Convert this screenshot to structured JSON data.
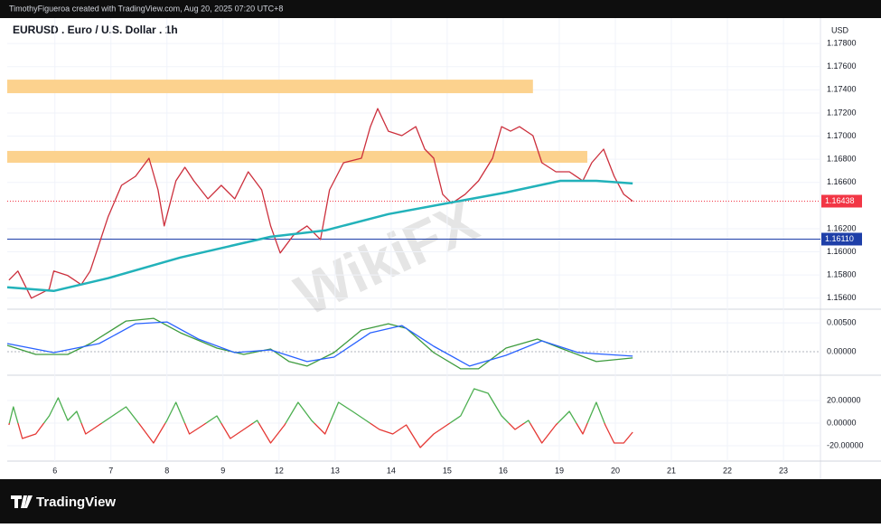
{
  "header": {
    "text": "TimothyFigueroa created with TradingView.com, Aug 20, 2025 07:20 UTC+8"
  },
  "footer": {
    "brand": "TradingView"
  },
  "watermark": "WikiFX",
  "chart_data": [
    {
      "type": "line",
      "title": "EURUSD . Euro / U.S. Dollar . 1h",
      "currency": "USD",
      "xlim": [
        0.15,
        14.66
      ],
      "xticks": [
        {
          "value": 1,
          "label": "6"
        },
        {
          "value": 2,
          "label": "7"
        },
        {
          "value": 3,
          "label": "8"
        },
        {
          "value": 4,
          "label": "9"
        },
        {
          "value": 5,
          "label": "12"
        },
        {
          "value": 6,
          "label": "13"
        },
        {
          "value": 7,
          "label": "14"
        },
        {
          "value": 8,
          "label": "15"
        },
        {
          "value": 9,
          "label": "16"
        },
        {
          "value": 10,
          "label": "19"
        },
        {
          "value": 11,
          "label": "20"
        },
        {
          "value": 12,
          "label": "21"
        },
        {
          "value": 13,
          "label": "22"
        },
        {
          "value": 14,
          "label": "23"
        }
      ],
      "ylim": [
        1.1552,
        1.1802
      ],
      "yticks": [
        {
          "value": 1.156,
          "label": "1.15600"
        },
        {
          "value": 1.158,
          "label": "1.15800"
        },
        {
          "value": 1.16,
          "label": "1.16000"
        },
        {
          "value": 1.162,
          "label": "1.16200"
        },
        {
          "value": 1.166,
          "label": "1.16600"
        },
        {
          "value": 1.168,
          "label": "1.16800"
        },
        {
          "value": 1.17,
          "label": "1.17000"
        },
        {
          "value": 1.172,
          "label": "1.17200"
        },
        {
          "value": 1.174,
          "label": "1.17400"
        },
        {
          "value": 1.176,
          "label": "1.17600"
        },
        {
          "value": 1.178,
          "label": "1.17800"
        }
      ],
      "grid": true,
      "zones": [
        {
          "from": 1.17371,
          "to": 1.17488,
          "x_end": 9.53,
          "color": "#fcd28e"
        },
        {
          "from": 1.1677,
          "to": 1.16872,
          "x_end": 10.5,
          "color": "#fcd28e"
        }
      ],
      "price_lines": [
        {
          "value": 1.16438,
          "color": "#f23645"
        },
        {
          "value": 1.1611,
          "label": "1.16110",
          "color": "#1e3fa8"
        }
      ],
      "series": [
        {
          "color": "#cc2f3c",
          "x": [
            0.18,
            0.34,
            0.58,
            0.9,
            0.98,
            1.23,
            1.47,
            1.63,
            1.79,
            1.95,
            2.19,
            2.44,
            2.68,
            2.84,
            2.95,
            3.16,
            3.32,
            3.48,
            3.73,
            3.97,
            4.21,
            4.45,
            4.69,
            4.85,
            5.02,
            5.26,
            5.5,
            5.74,
            5.9,
            6.15,
            6.47,
            6.63,
            6.76,
            6.95,
            7.19,
            7.44,
            7.6,
            7.76,
            7.92,
            8.08,
            8.32,
            8.56,
            8.81,
            8.97,
            9.13,
            9.29,
            9.53,
            9.69,
            9.94,
            10.18,
            10.42,
            10.58,
            10.79,
            10.98,
            11.15,
            11.31
          ],
          "values": [
            1.15756,
            1.15834,
            1.156,
            1.15678,
            1.15834,
            1.15795,
            1.15717,
            1.15834,
            1.16068,
            1.16302,
            1.16575,
            1.16653,
            1.16809,
            1.16536,
            1.16224,
            1.16614,
            1.16731,
            1.16614,
            1.16458,
            1.16575,
            1.16458,
            1.16692,
            1.16536,
            1.16224,
            1.1599,
            1.16146,
            1.16224,
            1.16107,
            1.16536,
            1.1677,
            1.16809,
            1.17082,
            1.17238,
            1.17043,
            1.17004,
            1.17082,
            1.16887,
            1.16809,
            1.16497,
            1.16419,
            1.16497,
            1.16614,
            1.16809,
            1.17082,
            1.17043,
            1.17082,
            1.17004,
            1.1677,
            1.16692,
            1.16692,
            1.16614,
            1.1677,
            1.16887,
            1.16653,
            1.16497,
            1.16438
          ]
        },
        {
          "color": "#22b2ba",
          "x": [
            0.15,
            0.98,
            1.95,
            3.24,
            4.85,
            5.82,
            6.95,
            8.08,
            9.05,
            10.02,
            10.66,
            11.31
          ],
          "values": [
            1.15694,
            1.15662,
            1.15772,
            1.15951,
            1.1613,
            1.16185,
            1.16326,
            1.16427,
            1.16513,
            1.16614,
            1.16614,
            1.16591
          ]
        }
      ]
    },
    {
      "type": "line",
      "ylim": [
        -0.0033,
        0.0069
      ],
      "yticks": [
        {
          "value": 0,
          "label": "0.00000"
        },
        {
          "value": 0.005,
          "label": "0.00500"
        }
      ],
      "series": [
        {
          "color": "#3d9b3d",
          "x": [
            0.15,
            0.66,
            1.23,
            1.63,
            2.27,
            2.76,
            3.24,
            3.89,
            4.37,
            4.85,
            5.18,
            5.5,
            5.98,
            6.47,
            6.95,
            7.27,
            7.76,
            8.24,
            8.56,
            9.05,
            9.61,
            10.02,
            10.66,
            11.31
          ],
          "values": [
            0.00109,
            -0.00047,
            -0.00047,
            0.00141,
            0.00531,
            0.00578,
            0.00328,
            0.00063,
            -0.00047,
            0.00047,
            -0.00172,
            -0.0025,
            -0.00016,
            0.00375,
            0.00484,
            0.00406,
            -0.00016,
            -0.00297,
            -0.00297,
            0.00063,
            0.00219,
            0.00063,
            -0.00172,
            -0.00109
          ]
        },
        {
          "color": "#2962ff",
          "x": [
            0.15,
            0.98,
            1.79,
            2.44,
            3.0,
            3.56,
            4.21,
            4.85,
            5.5,
            5.98,
            6.63,
            7.19,
            7.76,
            8.4,
            9.05,
            9.69,
            10.34,
            11.31
          ],
          "values": [
            0.00141,
            -0.00016,
            0.00141,
            0.00484,
            0.00516,
            0.00219,
            -0.00016,
            0.00031,
            -0.00172,
            -0.00094,
            0.00328,
            0.00453,
            0.00094,
            -0.0025,
            -0.00063,
            0.00188,
            -0.00016,
            -0.00078
          ]
        }
      ]
    },
    {
      "type": "line",
      "ylim": [
        -33.6,
        38.4
      ],
      "yticks": [
        {
          "value": -20,
          "label": "-20.00000"
        },
        {
          "value": 0,
          "label": "0.00000"
        },
        {
          "value": 20,
          "label": "20.00000"
        }
      ],
      "colors": {
        "above": "#4caf50",
        "below": "#e53935"
      },
      "series": [
        {
          "x": [
            0.18,
            0.26,
            0.42,
            0.66,
            0.9,
            1.06,
            1.23,
            1.39,
            1.55,
            1.79,
            2.03,
            2.27,
            2.52,
            2.76,
            3.0,
            3.16,
            3.4,
            3.65,
            3.89,
            4.13,
            4.37,
            4.61,
            4.85,
            5.1,
            5.34,
            5.58,
            5.82,
            6.06,
            6.31,
            6.55,
            6.79,
            7.03,
            7.27,
            7.52,
            7.76,
            8.0,
            8.24,
            8.48,
            8.73,
            8.97,
            9.21,
            9.45,
            9.69,
            9.94,
            10.18,
            10.42,
            10.66,
            10.82,
            10.98,
            11.15,
            11.31
          ],
          "values": [
            -1.6,
            14.4,
            -13.6,
            -9.6,
            6.4,
            22.4,
            2.4,
            10.4,
            -9.6,
            -1.6,
            6.4,
            14.4,
            -1.6,
            -17.6,
            2.4,
            18.4,
            -9.6,
            -1.6,
            6.4,
            -13.6,
            -5.6,
            2.4,
            -17.6,
            -1.6,
            18.4,
            2.4,
            -9.6,
            18.4,
            10.4,
            2.4,
            -5.6,
            -9.6,
            -1.6,
            -21.6,
            -9.6,
            -1.6,
            6.4,
            30.4,
            26.4,
            6.4,
            -5.6,
            2.4,
            -17.6,
            -1.6,
            10.4,
            -9.6,
            18.4,
            -1.6,
            -17.6,
            -17.6,
            -8
          ]
        }
      ]
    }
  ]
}
